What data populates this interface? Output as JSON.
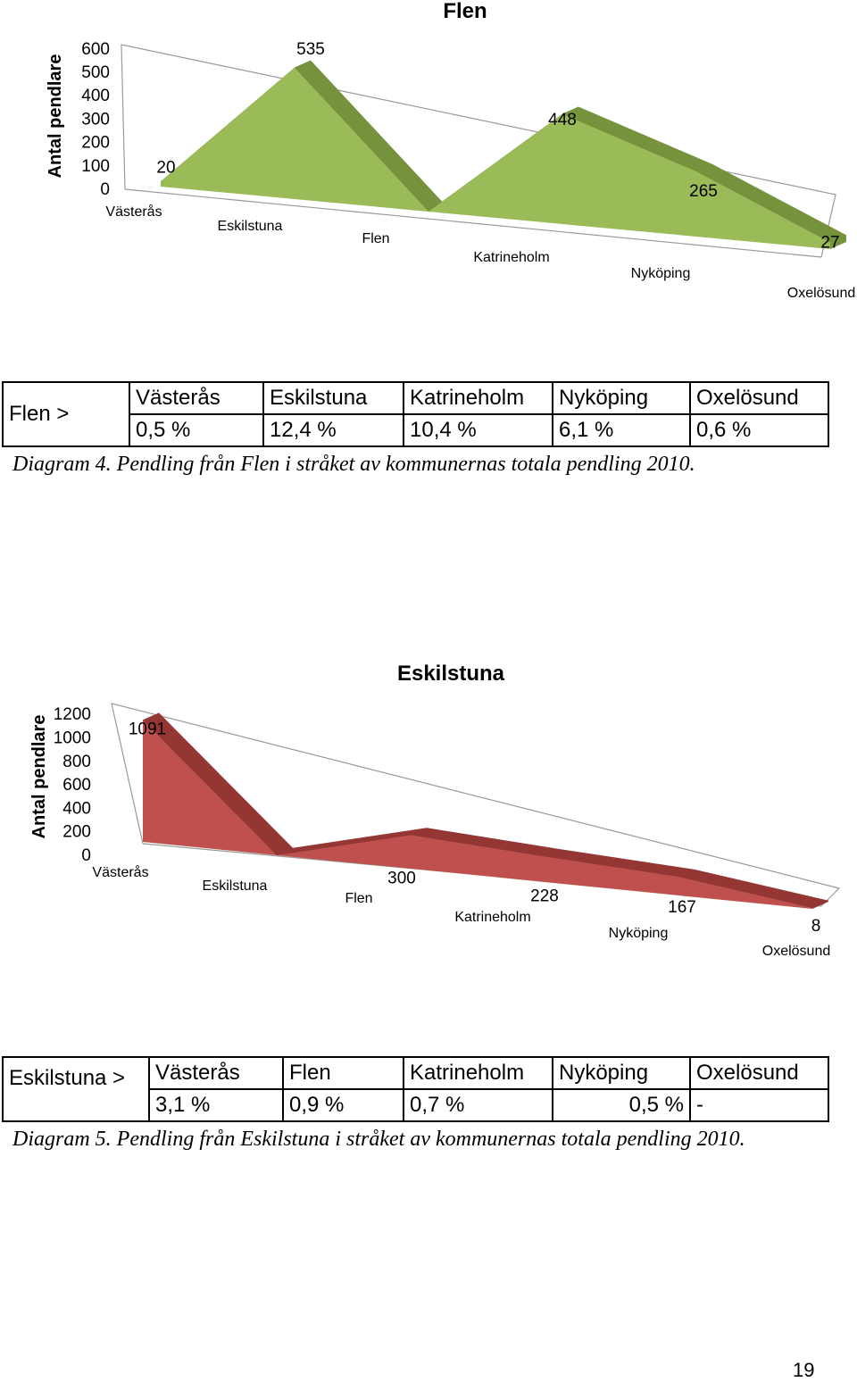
{
  "chart_data": [
    {
      "type": "area",
      "title": "Flen",
      "ylabel": "Antal pendlare",
      "categories": [
        "Västerås",
        "Eskilstuna",
        "Flen",
        "Katrineholm",
        "Nyköping",
        "Oxelösund"
      ],
      "series": [
        {
          "values": [
            20,
            535,
            0,
            448,
            265,
            27
          ]
        }
      ],
      "data_labels": [
        "20",
        "535",
        "",
        "448",
        "265",
        "27"
      ],
      "y_ticks": [
        "600",
        "500",
        "400",
        "300",
        "200",
        "100",
        "0"
      ],
      "ylim": [
        0,
        600
      ],
      "color": "#9bbb59",
      "side_color": "#76923c"
    },
    {
      "type": "area",
      "title": "Eskilstuna",
      "ylabel": "Antal pendlare",
      "categories": [
        "Västerås",
        "Eskilstuna",
        "Flen",
        "Katrineholm",
        "Nyköping",
        "Oxelösund"
      ],
      "series": [
        {
          "values": [
            1091,
            0,
            300,
            228,
            167,
            8
          ]
        }
      ],
      "data_labels": [
        "1091",
        "",
        "300",
        "228",
        "167",
        "8"
      ],
      "y_ticks": [
        "1200",
        "1000",
        "800",
        "600",
        "400",
        "200",
        "0"
      ],
      "ylim": [
        0,
        1200
      ],
      "color": "#c0504d",
      "side_color": "#943634"
    }
  ],
  "tables": [
    {
      "row_header": "Flen >",
      "headers": [
        "Västerås",
        "Eskilstuna",
        "Katrineholm",
        "Nyköping",
        "Oxelösund"
      ],
      "values": [
        "0,5 %",
        "12,4 %",
        "10,4 %",
        "6,1 %",
        "0,6 %"
      ]
    },
    {
      "row_header": "Eskilstuna >",
      "headers": [
        "Västerås",
        "Flen",
        "Katrineholm",
        "Nyköping",
        "Oxelösund"
      ],
      "values": [
        "3,1 %",
        "0,9 %",
        "0,7 %",
        "0,5 %",
        "-"
      ]
    }
  ],
  "captions": [
    "Diagram 4. Pendling från Flen i stråket av kommunernas totala pendling 2010.",
    "Diagram 5. Pendling från Eskilstuna i stråket av kommunernas totala pendling 2010."
  ],
  "page_number": "19"
}
